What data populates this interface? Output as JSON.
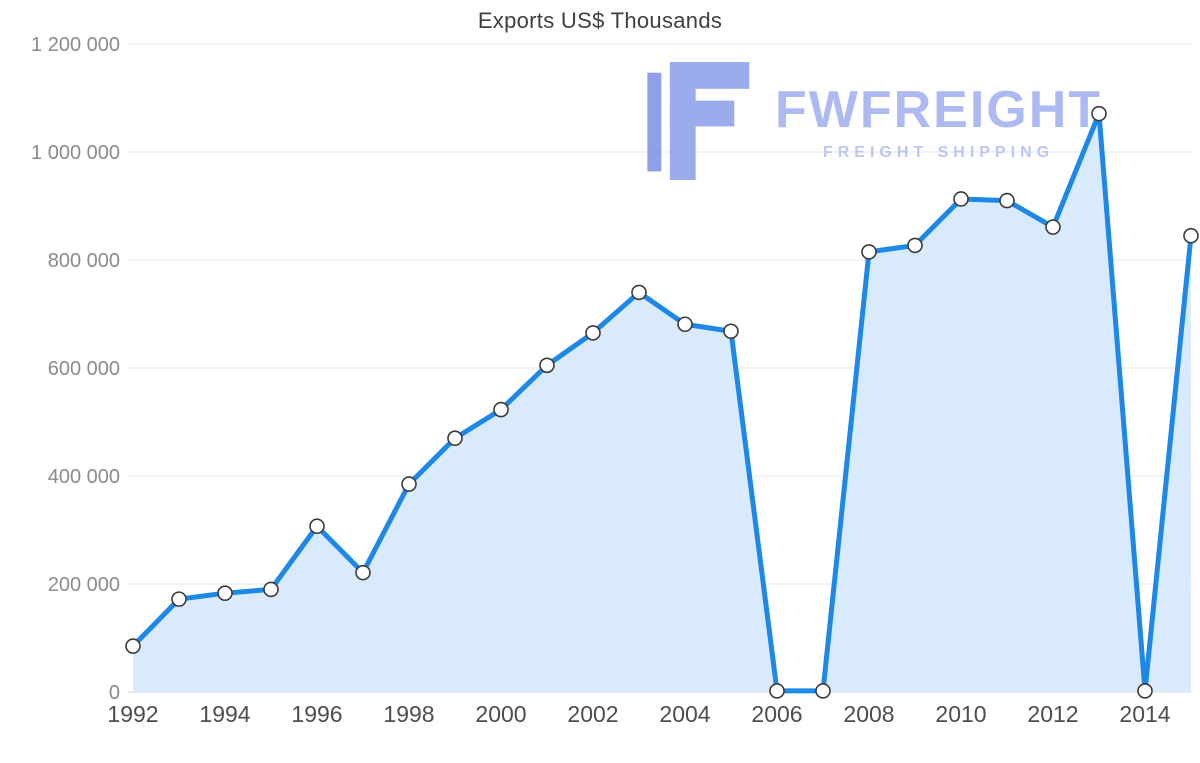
{
  "title": "Exports US$ Thousands",
  "watermark": {
    "brand": "FWFREIGHT",
    "tagline": "FREIGHT SHIPPING",
    "logo_color": "#93a5ec",
    "logo_bar_color": "#8598e8"
  },
  "chart_data": {
    "type": "area",
    "title": "Exports US$ Thousands",
    "xlabel": "",
    "ylabel": "",
    "x": [
      1992,
      1993,
      1994,
      1995,
      1996,
      1997,
      1998,
      1999,
      2000,
      2001,
      2002,
      2003,
      2004,
      2005,
      2006,
      2007,
      2008,
      2009,
      2010,
      2011,
      2012,
      2013,
      2014,
      2015
    ],
    "values": [
      85000,
      172000,
      183000,
      190000,
      307000,
      221000,
      385000,
      470000,
      523000,
      605000,
      665000,
      740000,
      681000,
      668000,
      2000,
      2000,
      815000,
      827000,
      913000,
      910000,
      861000,
      1071000,
      2000,
      845000
    ],
    "ylim": [
      0,
      1200000
    ],
    "ytick_step": 200000,
    "ytick_labels": [
      "0",
      "200 000",
      "400 000",
      "600 000",
      "800 000",
      "1 000 000",
      "1 200 000"
    ],
    "xtick_labels": [
      "1992",
      "1994",
      "1996",
      "1998",
      "2000",
      "2002",
      "2004",
      "2006",
      "2008",
      "2010",
      "2012",
      "2014"
    ],
    "xtick_every": 2,
    "grid": true,
    "legend": "none",
    "colors": {
      "line": "#1e88e8",
      "fill": "#d8eafb",
      "marker_fill": "#ffffff",
      "marker_stroke": "#3b3b3b",
      "grid": "#e4e4e4",
      "axis": "#d6d6d6",
      "ytick": "#8b8b8b",
      "xtick": "#4d4d4d",
      "title": "#3f3f3f"
    }
  }
}
